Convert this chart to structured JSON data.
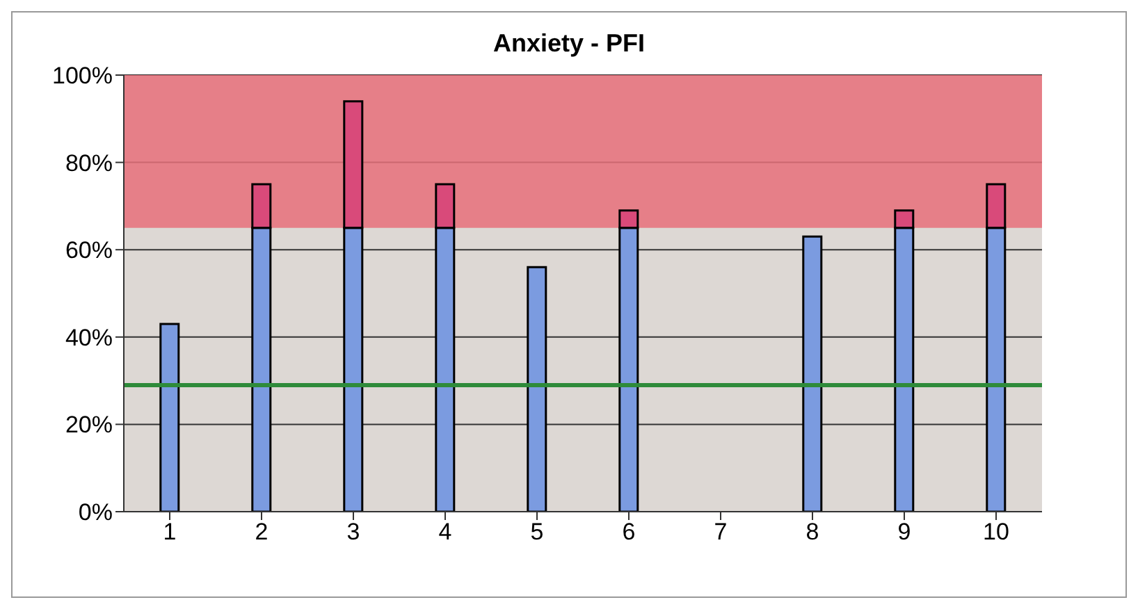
{
  "chart_data": {
    "type": "bar",
    "title": "Anxiety - PFI",
    "categories": [
      "1",
      "2",
      "3",
      "4",
      "5",
      "6",
      "7",
      "8",
      "9",
      "10"
    ],
    "stacked": true,
    "series": [
      {
        "color": "#7b9be0",
        "values": [
          43,
          65,
          65,
          65,
          56,
          65,
          0,
          63,
          65,
          65
        ]
      },
      {
        "color": "#d94a7a",
        "values": [
          null,
          10,
          29,
          10,
          null,
          4,
          null,
          null,
          4,
          10
        ]
      }
    ],
    "ylim": [
      0,
      100
    ],
    "yticks": [
      {
        "value": 0,
        "label": "0%"
      },
      {
        "value": 20,
        "label": "20%"
      },
      {
        "value": 40,
        "label": "40%"
      },
      {
        "value": 60,
        "label": "60%"
      },
      {
        "value": 80,
        "label": "80%"
      },
      {
        "value": 100,
        "label": "100%"
      }
    ],
    "grid": "y",
    "legend": false,
    "bands": [
      {
        "axis": "y",
        "from": 65,
        "to": 100,
        "color": "#e8707a"
      }
    ],
    "ref_lines": [
      {
        "axis": "y",
        "value": 29,
        "color": "#2e8b3a"
      }
    ]
  }
}
